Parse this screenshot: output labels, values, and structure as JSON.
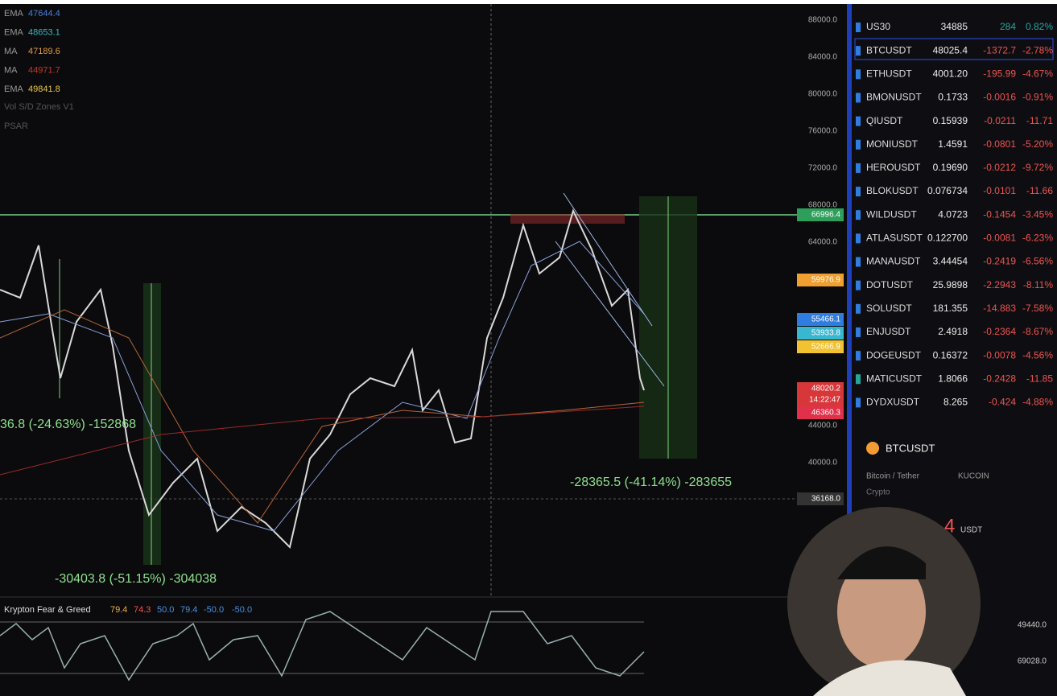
{
  "indicators": [
    {
      "name": "EMA",
      "value": "47644.4",
      "color": "#4a7fd8"
    },
    {
      "name": "EMA",
      "value": "48653.1",
      "color": "#3bb6c4"
    },
    {
      "name": "MA",
      "value": "47189.6",
      "color": "#e39a3c"
    },
    {
      "name": "MA",
      "value": "44971.7",
      "color": "#c0392b"
    },
    {
      "name": "EMA",
      "value": "49841.8",
      "color": "#e6c84a"
    }
  ],
  "hidden_indicators": [
    "Vol S/D Zones V1",
    "PSAR"
  ],
  "price_axis": [
    "88000.0",
    "84000.0",
    "80000.0",
    "76000.0",
    "72000.0",
    "68000.0",
    "64000.0",
    "44000.0",
    "40000.0"
  ],
  "price_tags": [
    {
      "label": "66996.4",
      "color": "#2e9e5b"
    },
    {
      "label": "59976.9",
      "color": "#f0a030"
    },
    {
      "label": "55466.1",
      "color": "#2f7de1"
    },
    {
      "label": "53933.8",
      "color": "#39b6d0"
    },
    {
      "label": "52666.9",
      "color": "#f2c230"
    },
    {
      "label": "48020.2",
      "color": "#d8373a"
    },
    {
      "label": "14:22:47",
      "color": "#d8373a"
    },
    {
      "label": "46360.3",
      "color": "#e0304a"
    },
    {
      "label": "36168.0",
      "color": "#333"
    }
  ],
  "annotations": [
    "36.8 (-24.63%) -152868",
    "-30403.8 (-51.15%) -304038",
    "-28365.5 (-41.14%) -283655"
  ],
  "oscillator": {
    "name": "Krypton Fear & Greed",
    "values": [
      "79.4",
      "74.3",
      "50.0",
      "79.4",
      "-50.0",
      "-50.0"
    ]
  },
  "watchlist": [
    {
      "symbol": "US30",
      "last": "34885",
      "change": "284",
      "pct": "0.82%",
      "color": "#26a69a"
    },
    {
      "symbol": "BTCUSDT",
      "last": "48025.4",
      "change": "-1372.7",
      "pct": "-2.78%",
      "color": "#ef5350"
    },
    {
      "symbol": "ETHUSDT",
      "last": "4001.20",
      "change": "-195.99",
      "pct": "-4.67%",
      "color": "#ef5350"
    },
    {
      "symbol": "BMONUSDT",
      "last": "0.1733",
      "change": "-0.0016",
      "pct": "-0.91%",
      "color": "#ef5350"
    },
    {
      "symbol": "QIUSDT",
      "last": "0.15939",
      "change": "-0.0211",
      "pct": "-11.71",
      "color": "#ef5350"
    },
    {
      "symbol": "MONIUSDT",
      "last": "1.4591",
      "change": "-0.0801",
      "pct": "-5.20%",
      "color": "#ef5350"
    },
    {
      "symbol": "HEROUSDT",
      "last": "0.19690",
      "change": "-0.0212",
      "pct": "-9.72%",
      "color": "#ef5350"
    },
    {
      "symbol": "BLOKUSDT",
      "last": "0.076734",
      "change": "-0.0101",
      "pct": "-11.66",
      "color": "#ef5350"
    },
    {
      "symbol": "WILDUSDT",
      "last": "4.0723",
      "change": "-0.1454",
      "pct": "-3.45%",
      "color": "#ef5350"
    },
    {
      "symbol": "ATLASUSDT",
      "last": "0.122700",
      "change": "-0.0081",
      "pct": "-6.23%",
      "color": "#ef5350"
    },
    {
      "symbol": "MANAUSDT",
      "last": "3.44454",
      "change": "-0.2419",
      "pct": "-6.56%",
      "color": "#ef5350"
    },
    {
      "symbol": "DOTUSDT",
      "last": "25.9898",
      "change": "-2.2943",
      "pct": "-8.11%",
      "color": "#ef5350"
    },
    {
      "symbol": "SOLUSDT",
      "last": "181.355",
      "change": "-14.883",
      "pct": "-7.58%",
      "color": "#ef5350"
    },
    {
      "symbol": "ENJUSDT",
      "last": "2.4918",
      "change": "-0.2364",
      "pct": "-8.67%",
      "color": "#ef5350"
    },
    {
      "symbol": "DOGEUSDT",
      "last": "0.16372",
      "change": "-0.0078",
      "pct": "-4.56%",
      "color": "#ef5350"
    },
    {
      "symbol": "MATICUSDT",
      "last": "1.8066",
      "change": "-0.2428",
      "pct": "-11.85",
      "color": "#ef5350"
    },
    {
      "symbol": "DYDXUSDT",
      "last": "8.265",
      "change": "-0.424",
      "pct": "-4.88%",
      "color": "#ef5350"
    }
  ],
  "details": {
    "symbol": "BTCUSDT",
    "name": "Bitcoin / Tether",
    "exchange": "KUCOIN",
    "category": "Crypto",
    "price": "4",
    "currency": "USDT",
    "stats": [
      "49440.0",
      "69028.0"
    ]
  }
}
